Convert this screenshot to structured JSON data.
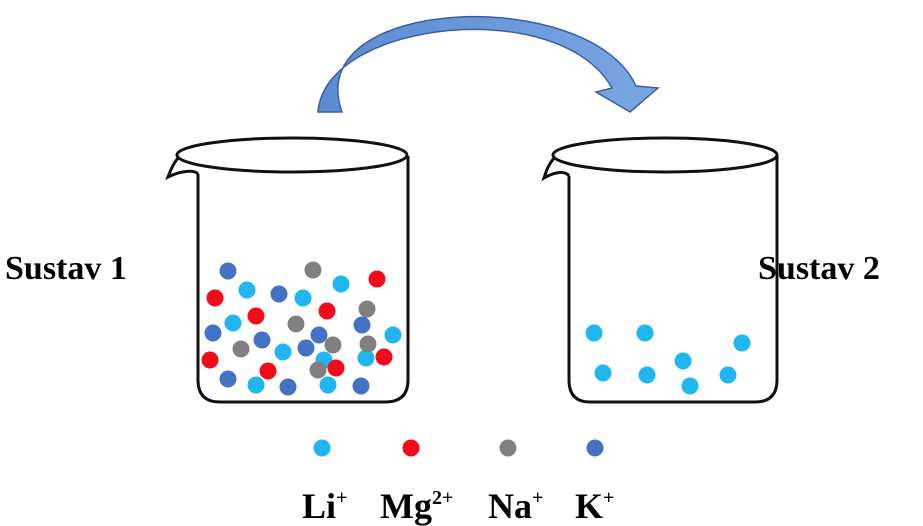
{
  "labels": {
    "left_system": "Sustav 1",
    "right_system": "Sustav 2"
  },
  "legend": [
    {
      "id": "li",
      "base": "Li",
      "charge": "+",
      "color": "#1fb6f1"
    },
    {
      "id": "mg",
      "base": "Mg",
      "charge": "2+",
      "color": "#f20c1b"
    },
    {
      "id": "na",
      "base": "Na",
      "charge": "+",
      "color": "#808080"
    },
    {
      "id": "k",
      "base": "K",
      "charge": "+",
      "color": "#4472c4"
    }
  ],
  "colors": {
    "arrow_fill": "#5b8fd6",
    "arrow_stroke": "#3b5f9e",
    "beaker_stroke": "#111111"
  },
  "transfer": {
    "from": "left_system",
    "to": "right_system",
    "ion": "li"
  }
}
